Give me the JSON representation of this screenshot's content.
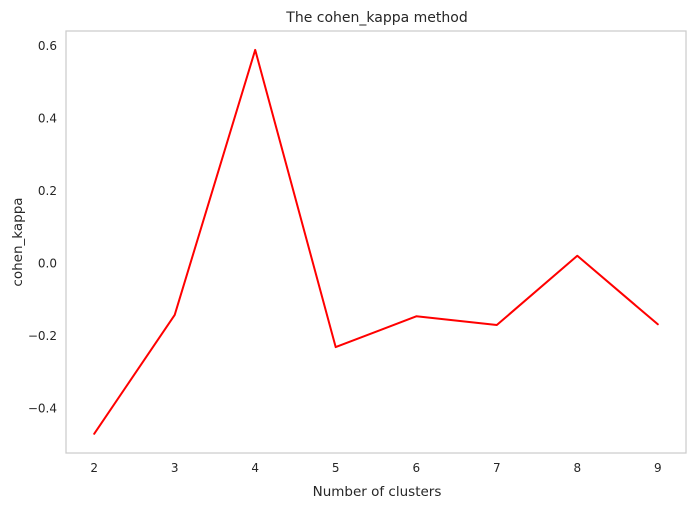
{
  "chart_data": {
    "type": "line",
    "title": "The cohen_kappa method",
    "xlabel": "Number of clusters",
    "ylabel": "cohen_kappa",
    "x": [
      2,
      3,
      4,
      5,
      6,
      7,
      8,
      9
    ],
    "xticks": [
      2,
      3,
      4,
      5,
      6,
      7,
      8,
      9
    ],
    "yticks": [
      -0.4,
      -0.2,
      0.0,
      0.2,
      0.4,
      0.6
    ],
    "ytick_labels": [
      "−0.4",
      "−0.2",
      "0.0",
      "0.2",
      "0.4",
      "0.6"
    ],
    "xlim": [
      1.65,
      9.35
    ],
    "ylim": [
      -0.523,
      0.641
    ],
    "grid": false,
    "series": [
      {
        "color": "#ff0000",
        "values": [
          -0.47,
          -0.142,
          0.589,
          -0.231,
          -0.146,
          -0.17,
          0.021,
          -0.168
        ]
      }
    ]
  }
}
